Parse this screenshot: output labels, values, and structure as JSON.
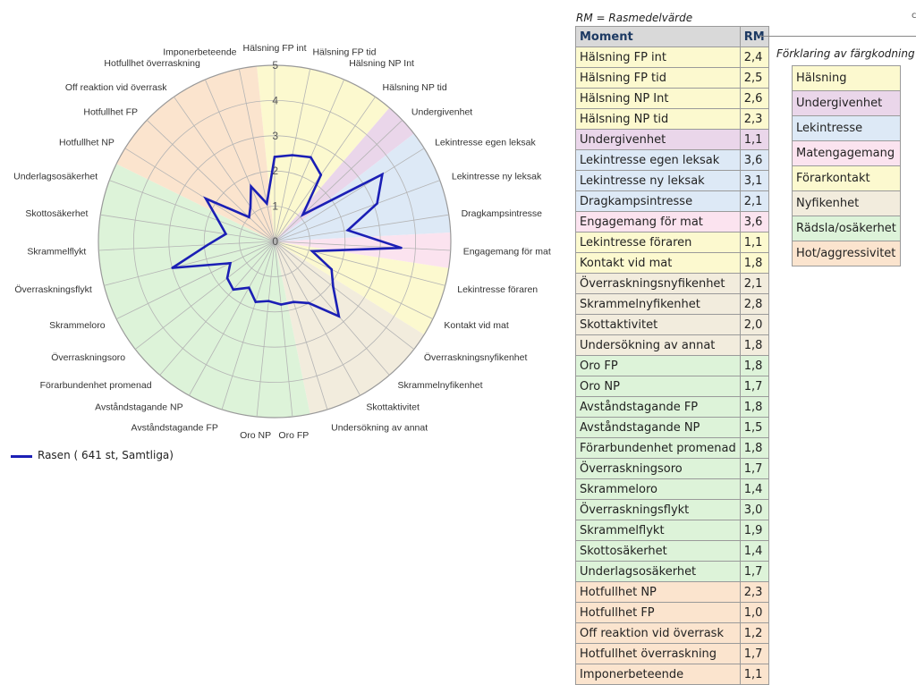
{
  "colors": {
    "halsning": "#fcf9cf",
    "undergivenhet": "#ead6ea",
    "lekintresse": "#dde9f6",
    "matengagemang": "#fbe3ef",
    "forarkontakt": "#fcf9cf",
    "nyfikenhet": "#f2ecdd",
    "radsla": "#ddf3d9",
    "hot": "#fbe4ce",
    "series_line": "#1b1fb5"
  },
  "chart_data": {
    "type": "radar",
    "r_max": 5,
    "r_ticks": [
      "0",
      "1",
      "2",
      "3",
      "4",
      "5"
    ],
    "axes": [
      "Hälsning FP int",
      "Hälsning FP tid",
      "Hälsning NP Int",
      "Hälsning NP tid",
      "Undergivenhet",
      "Lekintresse egen leksak",
      "Lekintresse ny leksak",
      "Dragkampsintresse",
      "Engagemang för mat",
      "Lekintresse föraren",
      "Kontakt vid mat",
      "Överraskningsnyfikenhet",
      "Skrammelnyfikenhet",
      "Skottaktivitet",
      "Undersökning av annat",
      "Oro FP",
      "Oro NP",
      "Avståndstagande FP",
      "Avståndstagande NP",
      "Förarbundenhet promenad",
      "Överraskningsoro",
      "Skrammeloro",
      "Överraskningsflykt",
      "Skrammelflykt",
      "Skottosäkerhet",
      "Underlagsosäkerhet",
      "Hotfullhet NP",
      "Hotfullhet FP",
      "Off reaktion vid överrask",
      "Hotfullhet överraskning",
      "Imponerbeteende"
    ],
    "axis_labels": [
      "Hälsning FP int",
      "Hälsning FP tid",
      "Hälsning NP Int",
      "Hälsning NP tid",
      "Undergivenhet",
      "Lekintresse egen leksak",
      "Lekintresse ny leksak",
      "Dragkampsintresse",
      "Engagemang för mat",
      "Lekintresse föraren",
      "Kontakt vid mat",
      "Överraskningsnyfikenhet",
      "Skrammelnyfikenhet",
      "Skottaktivitet",
      "Undersökning av annat",
      "Oro FP",
      "Oro NP",
      "Avståndstagande FP",
      "Avståndstagande NP",
      "Förarbundenhet promenad",
      "Överraskningsoro",
      "Skrammeloro",
      "Överraskningsflykt",
      "Skrammelflykt",
      "Skottosäkerhet",
      "Underlagsosäkerhet",
      "Hotfullhet NP",
      "Hotfullhet FP",
      "Off reaktion vid överrask",
      "Hotfullhet överraskning",
      "Imponerbeteende"
    ],
    "sectors": [
      {
        "color": "halsning",
        "span": [
          0,
          4
        ]
      },
      {
        "color": "undergivenhet",
        "span": [
          4,
          5
        ]
      },
      {
        "color": "lekintresse",
        "span": [
          5,
          8
        ]
      },
      {
        "color": "matengagemang",
        "span": [
          8,
          9
        ]
      },
      {
        "color": "forarkontakt",
        "span": [
          9,
          11
        ]
      },
      {
        "color": "nyfikenhet",
        "span": [
          11,
          15
        ]
      },
      {
        "color": "radsla",
        "span": [
          15,
          26
        ]
      },
      {
        "color": "hot",
        "span": [
          26,
          31
        ]
      }
    ],
    "series": [
      {
        "name": "Rasen ( 641 st, Samtliga)",
        "values": [
          2.4,
          2.5,
          2.6,
          2.3,
          1.1,
          3.6,
          3.1,
          2.1,
          3.6,
          1.1,
          1.8,
          2.1,
          2.8,
          2.0,
          1.8,
          1.8,
          1.7,
          1.8,
          1.5,
          1.8,
          1.7,
          1.4,
          3.0,
          1.9,
          1.4,
          1.7,
          2.3,
          1.0,
          1.2,
          1.7,
          1.1
        ]
      }
    ],
    "legend": "bottom-left"
  },
  "legend_label": "Rasen ( 641 st, Samtliga)",
  "rm_note": "RM = Rasmedelvärde",
  "table": {
    "headers": [
      "Moment",
      "RM"
    ],
    "rows": [
      {
        "moment": "Hälsning FP int",
        "rm": "2,4",
        "cat": "halsning"
      },
      {
        "moment": "Hälsning FP tid",
        "rm": "2,5",
        "cat": "halsning"
      },
      {
        "moment": "Hälsning NP Int",
        "rm": "2,6",
        "cat": "halsning"
      },
      {
        "moment": "Hälsning NP tid",
        "rm": "2,3",
        "cat": "halsning"
      },
      {
        "moment": "Undergivenhet",
        "rm": "1,1",
        "cat": "undergivenhet"
      },
      {
        "moment": "Lekintresse egen leksak",
        "rm": "3,6",
        "cat": "lekintresse"
      },
      {
        "moment": "Lekintresse ny leksak",
        "rm": "3,1",
        "cat": "lekintresse"
      },
      {
        "moment": "Dragkampsintresse",
        "rm": "2,1",
        "cat": "lekintresse"
      },
      {
        "moment": "Engagemang för mat",
        "rm": "3,6",
        "cat": "matengagemang"
      },
      {
        "moment": "Lekintresse föraren",
        "rm": "1,1",
        "cat": "forarkontakt"
      },
      {
        "moment": "Kontakt vid mat",
        "rm": "1,8",
        "cat": "forarkontakt"
      },
      {
        "moment": "Överraskningsnyfikenhet",
        "rm": "2,1",
        "cat": "nyfikenhet"
      },
      {
        "moment": "Skrammelnyfikenhet",
        "rm": "2,8",
        "cat": "nyfikenhet"
      },
      {
        "moment": "Skottaktivitet",
        "rm": "2,0",
        "cat": "nyfikenhet"
      },
      {
        "moment": "Undersökning av annat",
        "rm": "1,8",
        "cat": "nyfikenhet"
      },
      {
        "moment": "Oro FP",
        "rm": "1,8",
        "cat": "radsla"
      },
      {
        "moment": "Oro NP",
        "rm": "1,7",
        "cat": "radsla"
      },
      {
        "moment": "Avståndstagande FP",
        "rm": "1,8",
        "cat": "radsla"
      },
      {
        "moment": "Avståndstagande NP",
        "rm": "1,5",
        "cat": "radsla"
      },
      {
        "moment": "Förarbundenhet promenad",
        "rm": "1,8",
        "cat": "radsla"
      },
      {
        "moment": "Överraskningsoro",
        "rm": "1,7",
        "cat": "radsla"
      },
      {
        "moment": "Skrammeloro",
        "rm": "1,4",
        "cat": "radsla"
      },
      {
        "moment": "Överraskningsflykt",
        "rm": "3,0",
        "cat": "radsla"
      },
      {
        "moment": "Skrammelflykt",
        "rm": "1,9",
        "cat": "radsla"
      },
      {
        "moment": "Skottosäkerhet",
        "rm": "1,4",
        "cat": "radsla"
      },
      {
        "moment": "Underlagsosäkerhet",
        "rm": "1,7",
        "cat": "radsla"
      },
      {
        "moment": "Hotfullhet NP",
        "rm": "2,3",
        "cat": "hot"
      },
      {
        "moment": "Hotfullhet FP",
        "rm": "1,0",
        "cat": "hot"
      },
      {
        "moment": "Off reaktion vid överrask",
        "rm": "1,2",
        "cat": "hot"
      },
      {
        "moment": "Hotfullhet överraskning",
        "rm": "1,7",
        "cat": "hot"
      },
      {
        "moment": "Imponerbeteende",
        "rm": "1,1",
        "cat": "hot"
      }
    ]
  },
  "color_key": {
    "title": "Förklaring av färgkodning",
    "items": [
      {
        "label": "Hälsning",
        "cat": "halsning"
      },
      {
        "label": "Undergivenhet",
        "cat": "undergivenhet"
      },
      {
        "label": "Lekintresse",
        "cat": "lekintresse"
      },
      {
        "label": "Matengagemang",
        "cat": "matengagemang"
      },
      {
        "label": "Förarkontakt",
        "cat": "forarkontakt"
      },
      {
        "label": "Nyfikenhet",
        "cat": "nyfikenhet"
      },
      {
        "label": "Rädsla/osäkerhet",
        "cat": "radsla"
      },
      {
        "label": "Hot/aggressivitet",
        "cat": "hot"
      }
    ]
  }
}
